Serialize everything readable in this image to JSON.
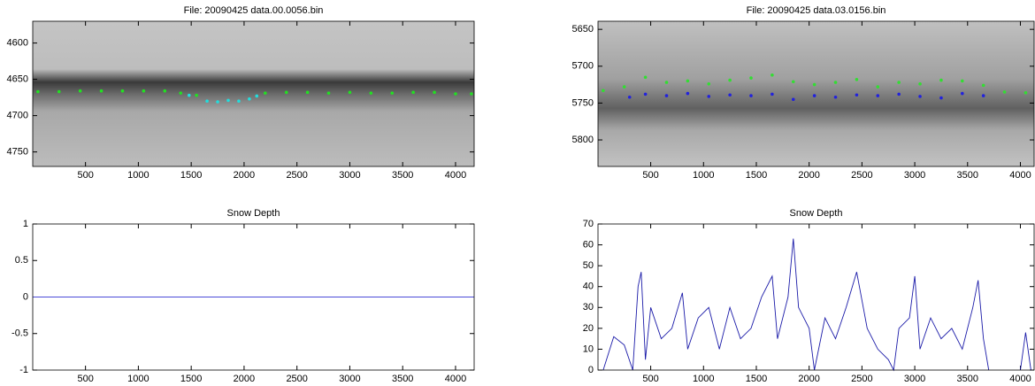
{
  "chart_data": [
    {
      "type": "image",
      "title": "File: 20090425 data.00.0056.bin",
      "xlim": [
        1,
        4176
      ],
      "ylim": [
        4570,
        4770
      ],
      "y_reversed": true,
      "xticks": [
        500,
        1000,
        1500,
        2000,
        2500,
        3000,
        3500,
        4000
      ],
      "yticks": [
        4600,
        4650,
        4700,
        4750
      ],
      "series": [
        {
          "color": "#22e022",
          "x": [
            50,
            250,
            450,
            650,
            850,
            1050,
            1250,
            1400,
            1550,
            2200,
            2400,
            2600,
            2800,
            3000,
            3200,
            3400,
            3600,
            3800,
            4000,
            4150
          ],
          "values": [
            4667,
            4667,
            4666,
            4666,
            4666,
            4666,
            4666,
            4669,
            4672,
            4669,
            4668,
            4668,
            4669,
            4668,
            4669,
            4669,
            4668,
            4668,
            4670,
            4670
          ]
        },
        {
          "color": "#22dddd",
          "x": [
            1480,
            1650,
            1750,
            1850,
            1950,
            2050,
            2120
          ],
          "values": [
            4672,
            4680,
            4681,
            4679,
            4680,
            4677,
            4673
          ]
        }
      ]
    },
    {
      "type": "image",
      "title": "File: 20090425 data.03.0156.bin",
      "xlim": [
        1,
        4130
      ],
      "ylim": [
        5639,
        5836
      ],
      "y_reversed": true,
      "xticks": [
        500,
        1000,
        1500,
        2000,
        2500,
        3000,
        3500,
        4000
      ],
      "yticks": [
        5650,
        5700,
        5750,
        5800
      ],
      "series": [
        {
          "color": "#33dd33",
          "x": [
            50,
            250,
            450,
            650,
            850,
            1050,
            1250,
            1450,
            1650,
            1850,
            2050,
            2250,
            2450,
            2650,
            2850,
            3050,
            3250,
            3450,
            3650,
            3850,
            4050
          ],
          "values": [
            5733,
            5728,
            5715,
            5722,
            5720,
            5724,
            5719,
            5716,
            5712,
            5721,
            5725,
            5722,
            5718,
            5728,
            5722,
            5724,
            5719,
            5720,
            5726,
            5735,
            5736
          ]
        },
        {
          "color": "#2222dd",
          "x": [
            300,
            450,
            650,
            850,
            1050,
            1250,
            1450,
            1650,
            1850,
            2050,
            2250,
            2450,
            2650,
            2850,
            3050,
            3250,
            3450,
            3650
          ],
          "values": [
            5742,
            5738,
            5740,
            5737,
            5741,
            5739,
            5740,
            5738,
            5745,
            5740,
            5742,
            5739,
            5740,
            5738,
            5741,
            5743,
            5737,
            5740
          ]
        }
      ]
    },
    {
      "type": "line",
      "title": "Snow Depth",
      "xlim": [
        1,
        4176
      ],
      "ylim": [
        -1,
        1
      ],
      "xticks": [
        500,
        1000,
        1500,
        2000,
        2500,
        3000,
        3500,
        4000
      ],
      "yticks": [
        -1,
        -0.5,
        0,
        0.5,
        1
      ],
      "series": [
        {
          "color": "#4a4ad8",
          "x": [
            1,
            4176
          ],
          "values": [
            0,
            0
          ]
        }
      ]
    },
    {
      "type": "line",
      "title": "Snow Depth",
      "xlim": [
        1,
        4130
      ],
      "ylim": [
        0,
        70
      ],
      "xticks": [
        500,
        1000,
        1500,
        2000,
        2500,
        3000,
        3500,
        4000
      ],
      "yticks": [
        0,
        10,
        20,
        30,
        40,
        50,
        60,
        70
      ],
      "series": [
        {
          "color": "#1a1aa8",
          "x": [
            50,
            150,
            250,
            330,
            380,
            410,
            450,
            500,
            600,
            700,
            800,
            850,
            950,
            1050,
            1150,
            1250,
            1350,
            1450,
            1550,
            1650,
            1700,
            1800,
            1850,
            1900,
            2000,
            2050,
            2150,
            2250,
            2350,
            2450,
            2550,
            2650,
            2750,
            2800,
            2850,
            2950,
            3000,
            3050,
            3150,
            3250,
            3350,
            3450,
            3550,
            3600,
            3650,
            3700,
            3850,
            4000,
            4050,
            4100
          ],
          "values": [
            0,
            16,
            12,
            0,
            40,
            47,
            5,
            30,
            15,
            20,
            37,
            10,
            25,
            30,
            10,
            30,
            15,
            20,
            35,
            45,
            15,
            35,
            63,
            30,
            20,
            0,
            25,
            15,
            30,
            47,
            20,
            10,
            5,
            0,
            20,
            25,
            45,
            10,
            25,
            15,
            20,
            10,
            30,
            43,
            15,
            0,
            null,
            0,
            18,
            0
          ]
        }
      ]
    }
  ]
}
